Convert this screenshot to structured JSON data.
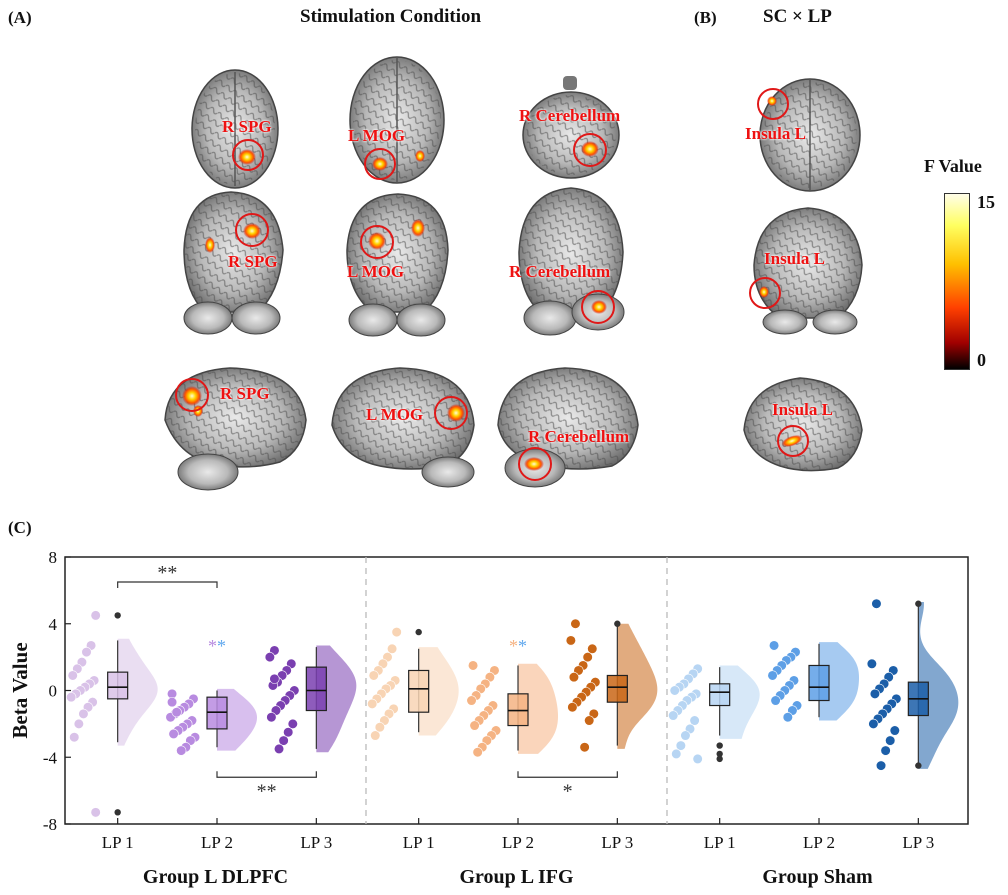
{
  "panel_a": {
    "letter": "(A)",
    "title": "Stimulation Condition",
    "regions": [
      "R SPG",
      "L MOG",
      "R Cerebellum"
    ]
  },
  "panel_b": {
    "letter": "(B)",
    "title": "SC × LP",
    "region": "Insula L",
    "colorbar": {
      "title": "F Value",
      "max_label": "15",
      "min_label": "0"
    }
  },
  "panel_c": {
    "letter": "(C)"
  },
  "colors": {
    "region_red": "#ee1111",
    "DLPFC": [
      "#d9c2e8",
      "#b88be0",
      "#7a3fb0"
    ],
    "IFG": [
      "#f8d4b4",
      "#f5b383",
      "#c96616"
    ],
    "Sham": [
      "#b7d5f3",
      "#5d9fe6",
      "#1b5ea8"
    ],
    "sig_blue": "#60a8ee",
    "sig_orange": "#f5b383",
    "sig_purple": "#b88be0"
  },
  "chart_data": {
    "type": "raincloud",
    "ylabel": "Beta Value",
    "ylim": [
      -8,
      8
    ],
    "yticks": [
      -8,
      -4,
      0,
      4,
      8
    ],
    "groups": [
      {
        "name": "Group L DLPFC",
        "levels": [
          {
            "label": "LP 1",
            "points": [
              4.5,
              2.7,
              2.3,
              1.7,
              1.3,
              0.9,
              0.6,
              0.4,
              0.2,
              0.0,
              -0.2,
              -0.4,
              -0.7,
              -1.0,
              -1.4,
              -2.0,
              -2.8,
              -7.3
            ],
            "box": {
              "q1": -0.5,
              "median": 0.2,
              "q3": 1.1,
              "min": -3.1,
              "max": 3.0
            },
            "outliers": [
              4.5,
              -7.3
            ]
          },
          {
            "label": "LP 2",
            "points": [
              -0.2,
              -0.5,
              -0.8,
              -1.0,
              -1.2,
              -1.4,
              -1.6,
              -1.8,
              -2.0,
              -2.2,
              -2.4,
              -2.6,
              -2.8,
              -3.0,
              -3.4,
              -3.6,
              -1.3,
              -0.7
            ],
            "box": {
              "q1": -2.3,
              "median": -1.3,
              "q3": -0.4,
              "min": -3.4,
              "max": 0.0
            },
            "outliers": []
          },
          {
            "label": "LP 3",
            "points": [
              2.4,
              2.0,
              1.6,
              1.2,
              0.9,
              0.5,
              0.3,
              0.0,
              -0.3,
              -0.6,
              -0.9,
              -1.2,
              -1.6,
              -2.0,
              -2.5,
              -3.0,
              -3.5,
              0.7
            ],
            "box": {
              "q1": -1.2,
              "median": 0.0,
              "q3": 1.4,
              "min": -3.5,
              "max": 2.6
            },
            "outliers": []
          }
        ],
        "significance": [
          {
            "between": [
              "LP 1",
              "LP 2"
            ],
            "label": "**",
            "position": "above"
          },
          {
            "between": [
              "LP 2",
              "LP 3"
            ],
            "label": "**",
            "position": "below"
          }
        ]
      },
      {
        "name": "Group L IFG",
        "levels": [
          {
            "label": "LP 1",
            "points": [
              3.5,
              2.5,
              2.0,
              1.6,
              1.2,
              0.9,
              0.6,
              0.3,
              0.1,
              -0.2,
              -0.5,
              -0.8,
              -1.1,
              -1.4,
              -1.8,
              -2.2,
              -2.7
            ],
            "box": {
              "q1": -1.3,
              "median": 0.1,
              "q3": 1.2,
              "min": -2.5,
              "max": 2.5
            },
            "outliers": [
              3.5
            ]
          },
          {
            "label": "LP 2",
            "points": [
              1.5,
              1.2,
              0.8,
              0.4,
              0.1,
              -0.3,
              -0.6,
              -0.9,
              -1.2,
              -1.5,
              -1.8,
              -2.1,
              -2.4,
              -2.7,
              -3.0,
              -3.4,
              -3.7
            ],
            "box": {
              "q1": -2.1,
              "median": -1.2,
              "q3": -0.2,
              "min": -3.6,
              "max": 1.5
            },
            "outliers": []
          },
          {
            "label": "LP 3",
            "points": [
              4.0,
              3.0,
              2.5,
              2.0,
              1.5,
              1.2,
              0.8,
              0.5,
              0.2,
              -0.1,
              -0.4,
              -0.7,
              -1.0,
              -1.4,
              -1.8,
              -3.4
            ],
            "box": {
              "q1": -0.7,
              "median": 0.2,
              "q3": 0.9,
              "min": -3.3,
              "max": 3.9
            },
            "outliers": [
              4.0
            ]
          }
        ],
        "significance": [
          {
            "between": [
              "LP 2",
              "LP 3"
            ],
            "label": "*",
            "position": "below"
          }
        ]
      },
      {
        "name": "Group Sham",
        "levels": [
          {
            "label": "LP 1",
            "points": [
              1.3,
              1.0,
              0.7,
              0.4,
              0.2,
              0.0,
              -0.2,
              -0.4,
              -0.6,
              -0.9,
              -1.2,
              -1.5,
              -1.8,
              -2.3,
              -2.7,
              -3.3,
              -3.8,
              -4.1
            ],
            "box": {
              "q1": -0.9,
              "median": -0.1,
              "q3": 0.4,
              "min": -2.7,
              "max": 1.4
            },
            "outliers": [
              -3.3,
              -3.8,
              -4.1
            ]
          },
          {
            "label": "LP 2",
            "points": [
              2.7,
              2.3,
              2.0,
              1.8,
              1.5,
              1.2,
              0.9,
              0.6,
              0.3,
              0.0,
              -0.3,
              -0.6,
              -0.9,
              -1.2,
              -1.6
            ],
            "box": {
              "q1": -0.6,
              "median": 0.2,
              "q3": 1.5,
              "min": -1.6,
              "max": 2.8
            },
            "outliers": []
          },
          {
            "label": "LP 3",
            "points": [
              5.2,
              1.6,
              1.2,
              0.8,
              0.4,
              0.1,
              -0.2,
              -0.5,
              -0.8,
              -1.1,
              -1.4,
              -1.7,
              -2.0,
              -2.4,
              -3.0,
              -3.6,
              -4.5
            ],
            "box": {
              "q1": -1.5,
              "median": -0.5,
              "q3": 0.5,
              "min": -4.5,
              "max": 5.1
            },
            "outliers": [
              5.2,
              -4.5
            ]
          }
        ],
        "significance": []
      }
    ]
  }
}
